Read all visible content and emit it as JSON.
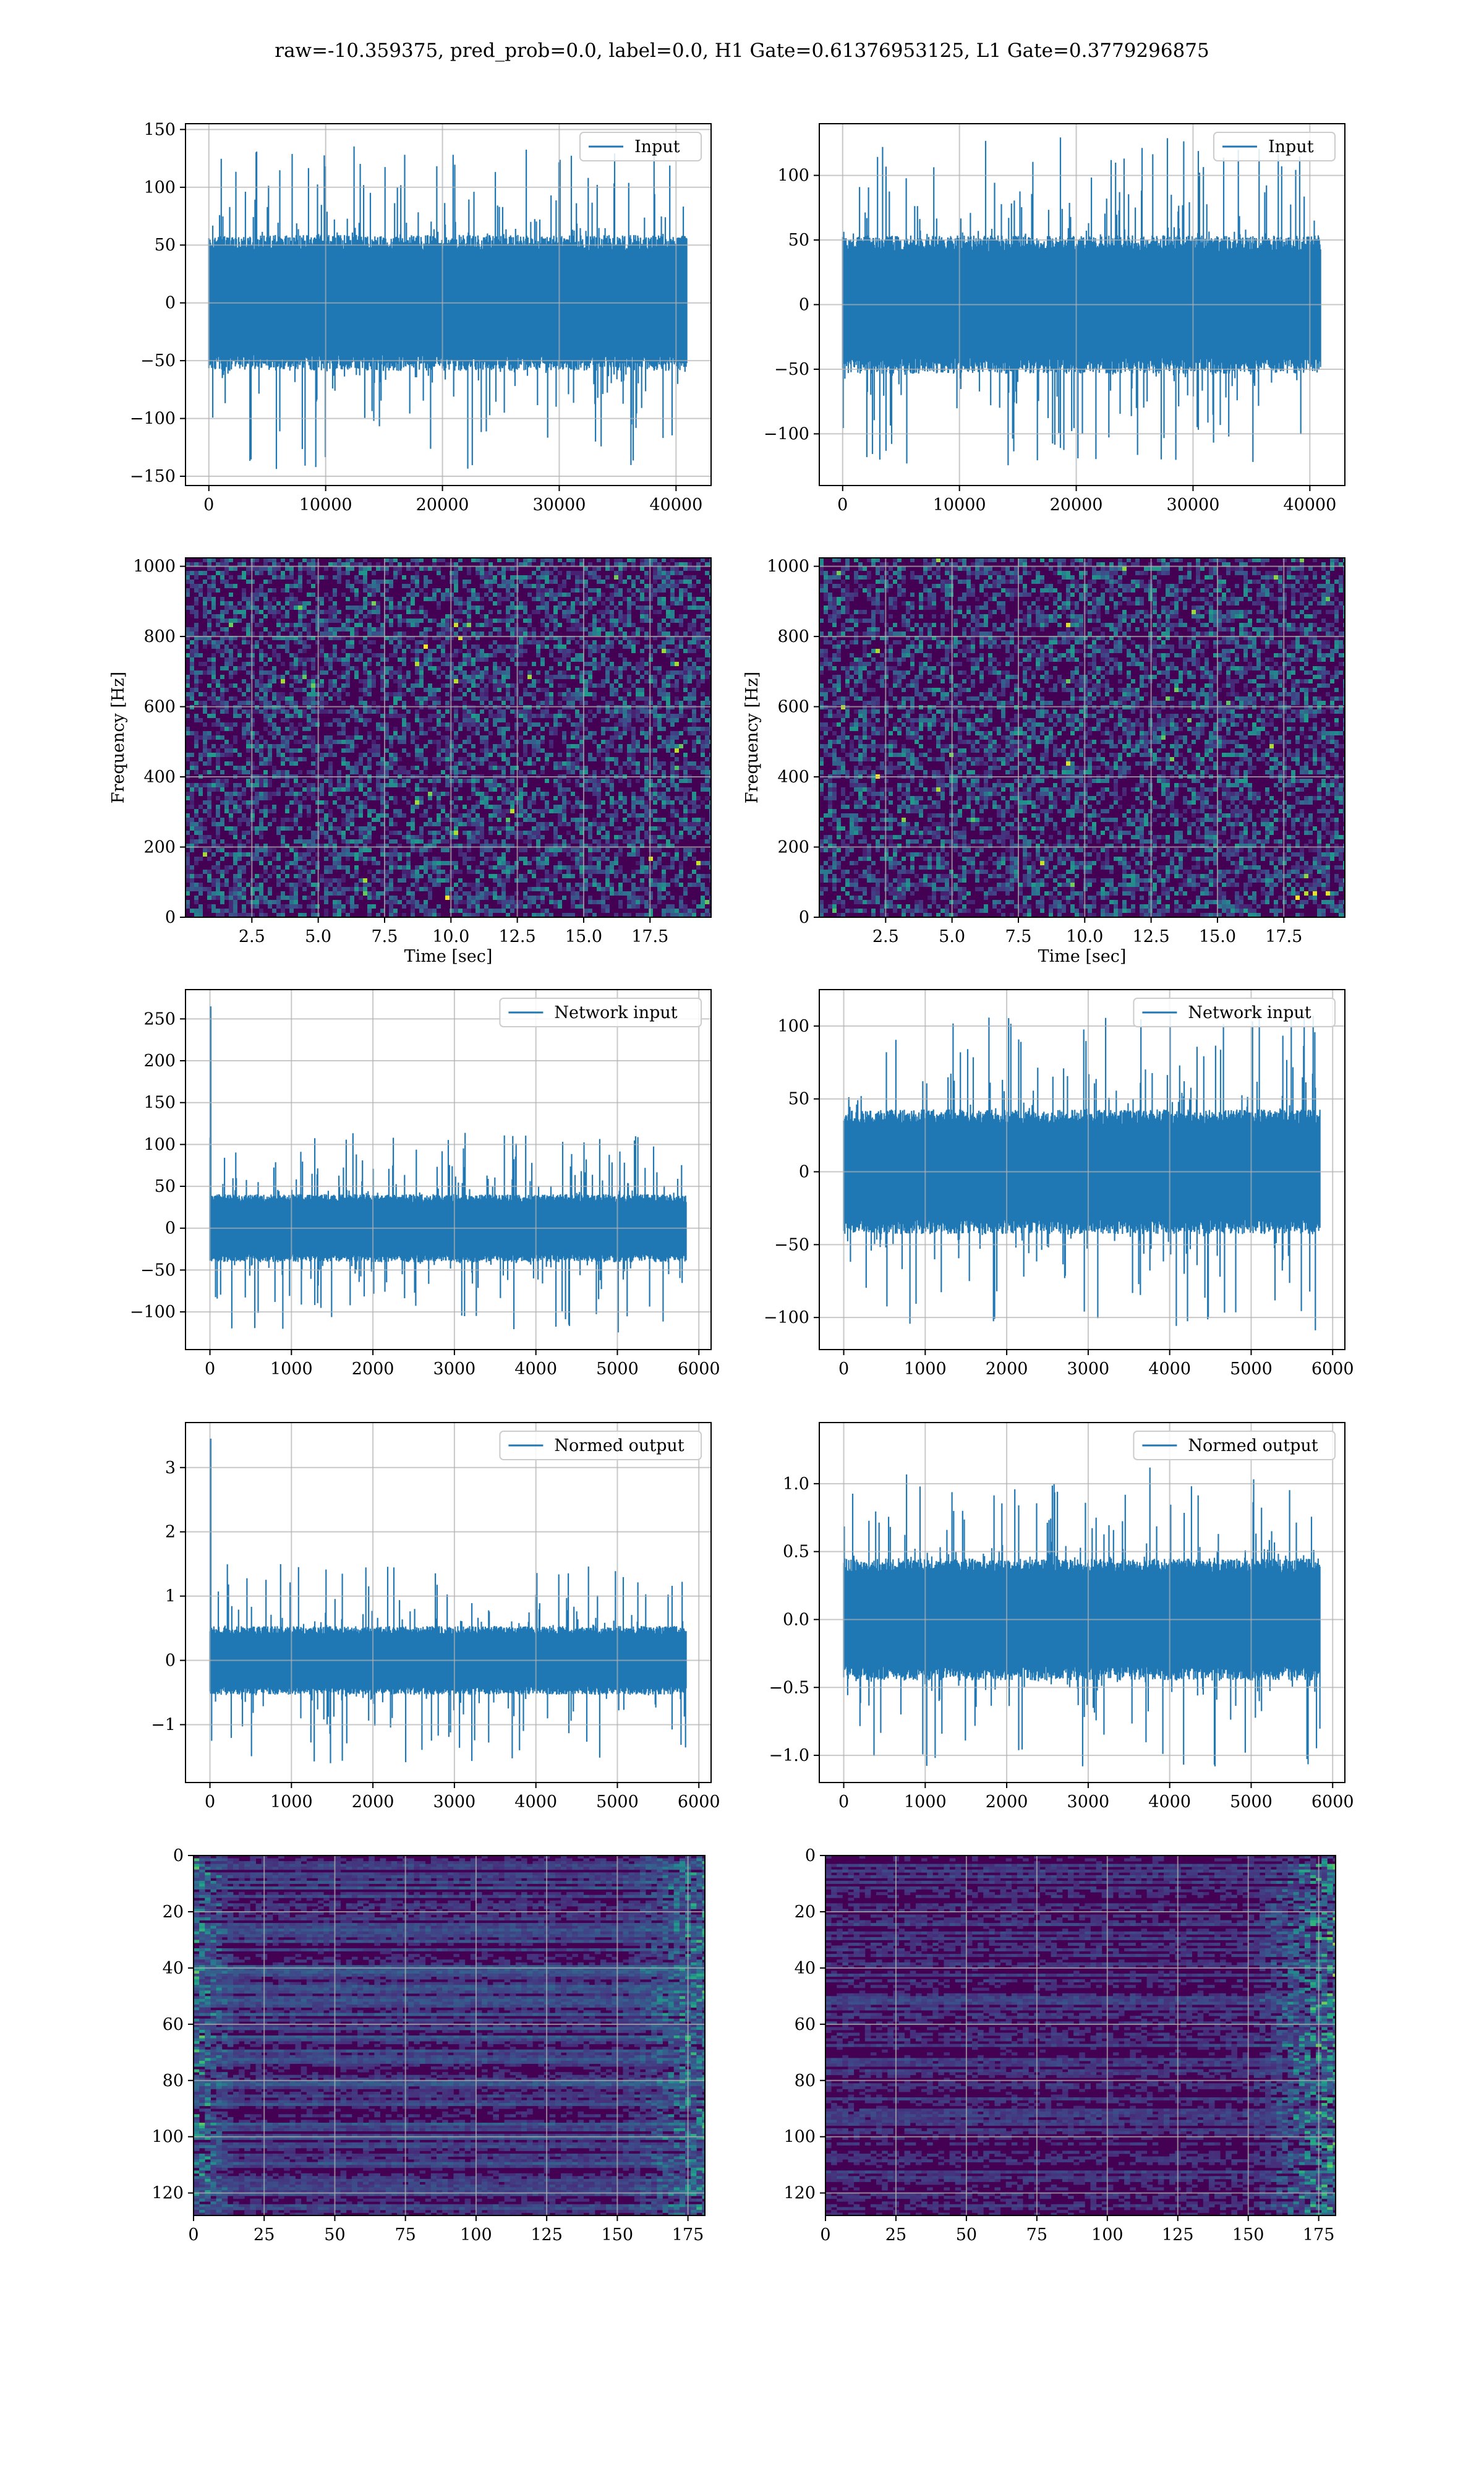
{
  "suptitle": "raw=-10.359375, pred_prob=0.0, label=0.0, H1 Gate=0.61376953125, L1 Gate=0.3779296875",
  "colors": {
    "line": "#1f77b4",
    "grid": "#b0b0b0",
    "viridis_dark": "#440154"
  },
  "chart_data": [
    {
      "id": "input-h1",
      "type": "line",
      "legend": [
        "Input"
      ],
      "legend_loc": "upper right",
      "xlim": [
        -2000,
        43000
      ],
      "ylim": [
        -158,
        155
      ],
      "xticks": [
        0,
        10000,
        20000,
        30000,
        40000
      ],
      "yticks": [
        -150,
        -100,
        -50,
        0,
        50,
        100,
        150
      ],
      "xlabel": "",
      "ylabel": "",
      "grid": true,
      "signal": {
        "n": 40960,
        "core": [
          -55,
          55
        ],
        "max": 140,
        "min": -145
      }
    },
    {
      "id": "input-l1",
      "type": "line",
      "legend": [
        "Input"
      ],
      "legend_loc": "upper right",
      "xlim": [
        -2000,
        43000
      ],
      "ylim": [
        -140,
        140
      ],
      "xticks": [
        0,
        10000,
        20000,
        30000,
        40000
      ],
      "yticks": [
        -100,
        -50,
        0,
        50,
        100
      ],
      "xlabel": "",
      "ylabel": "",
      "grid": true,
      "signal": {
        "n": 40960,
        "core": [
          -50,
          50
        ],
        "max": 130,
        "min": -125
      }
    },
    {
      "id": "spectrogram-h1",
      "type": "heatmap",
      "xlim": [
        0,
        19.8
      ],
      "ylim": [
        0,
        1024
      ],
      "xticks": [
        2.5,
        5.0,
        7.5,
        10.0,
        12.5,
        15.0,
        17.5
      ],
      "yticks": [
        0,
        200,
        400,
        600,
        800,
        1000
      ],
      "xlabel": "Time [sec]",
      "ylabel": "Frequency [Hz]",
      "grid": true,
      "colormap": "viridis"
    },
    {
      "id": "spectrogram-l1",
      "type": "heatmap",
      "xlim": [
        0,
        19.8
      ],
      "ylim": [
        0,
        1024
      ],
      "xticks": [
        2.5,
        5.0,
        7.5,
        10.0,
        12.5,
        15.0,
        17.5
      ],
      "yticks": [
        0,
        200,
        400,
        600,
        800,
        1000
      ],
      "xlabel": "Time [sec]",
      "ylabel": "Frequency [Hz]",
      "grid": true,
      "colormap": "viridis"
    },
    {
      "id": "network-input-h1",
      "type": "line",
      "legend": [
        "Network input"
      ],
      "legend_loc": "upper right",
      "xlim": [
        -300,
        6150
      ],
      "ylim": [
        -145,
        285
      ],
      "xticks": [
        0,
        1000,
        2000,
        3000,
        4000,
        5000,
        6000
      ],
      "yticks": [
        -100,
        -50,
        0,
        50,
        100,
        150,
        200,
        250
      ],
      "xlabel": "",
      "ylabel": "",
      "grid": true,
      "signal": {
        "n": 5850,
        "core": [
          -38,
          38
        ],
        "max": 115,
        "min": -125,
        "spike": 265
      }
    },
    {
      "id": "network-input-l1",
      "type": "line",
      "legend": [
        "Network input"
      ],
      "legend_loc": "upper right",
      "xlim": [
        -300,
        6150
      ],
      "ylim": [
        -122,
        125
      ],
      "xticks": [
        0,
        1000,
        2000,
        3000,
        4000,
        5000,
        6000
      ],
      "yticks": [
        -100,
        -50,
        0,
        50,
        100
      ],
      "xlabel": "",
      "ylabel": "",
      "grid": true,
      "signal": {
        "n": 5850,
        "core": [
          -40,
          40
        ],
        "max": 112,
        "min": -110
      }
    },
    {
      "id": "normed-output-h1",
      "type": "line",
      "legend": [
        "Normed output"
      ],
      "legend_loc": "upper right",
      "xlim": [
        -300,
        6150
      ],
      "ylim": [
        -1.9,
        3.7
      ],
      "xticks": [
        0,
        1000,
        2000,
        3000,
        4000,
        5000,
        6000
      ],
      "yticks": [
        -1,
        0,
        1,
        2,
        3
      ],
      "xlabel": "",
      "ylabel": "",
      "grid": true,
      "signal": {
        "n": 5850,
        "core": [
          -0.5,
          0.5
        ],
        "max": 1.5,
        "min": -1.6,
        "spike": 3.45
      }
    },
    {
      "id": "normed-output-l1",
      "type": "line",
      "legend": [
        "Normed output"
      ],
      "legend_loc": "upper right",
      "xlim": [
        -300,
        6150
      ],
      "ylim": [
        -1.2,
        1.45
      ],
      "xticks": [
        0,
        1000,
        2000,
        3000,
        4000,
        5000,
        6000
      ],
      "yticks": [
        -1.0,
        -0.5,
        0.0,
        0.5,
        1.0
      ],
      "xlabel": "",
      "ylabel": "",
      "grid": true,
      "signal": {
        "n": 5850,
        "core": [
          -0.42,
          0.42
        ],
        "max": 1.12,
        "min": -1.1
      }
    },
    {
      "id": "feature-map-h1",
      "type": "heatmap",
      "xlim": [
        0,
        181
      ],
      "ylim": [
        128,
        0
      ],
      "xticks": [
        0,
        25,
        50,
        75,
        100,
        125,
        150,
        175
      ],
      "yticks": [
        0,
        20,
        40,
        60,
        80,
        100,
        120
      ],
      "xlabel": "",
      "ylabel": "",
      "grid": true,
      "colormap": "viridis"
    },
    {
      "id": "feature-map-l1",
      "type": "heatmap",
      "xlim": [
        0,
        181
      ],
      "ylim": [
        128,
        0
      ],
      "xticks": [
        0,
        25,
        50,
        75,
        100,
        125,
        150,
        175
      ],
      "yticks": [
        0,
        20,
        40,
        60,
        80,
        100,
        120
      ],
      "xlabel": "",
      "ylabel": "",
      "grid": true,
      "colormap": "viridis"
    }
  ]
}
